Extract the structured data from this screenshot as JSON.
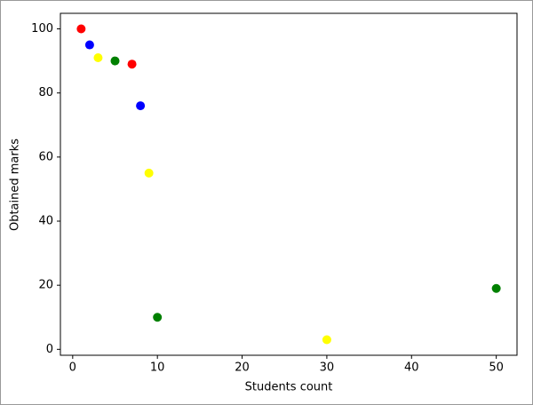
{
  "chart_data": {
    "type": "scatter",
    "x_label": "Students count",
    "y_label": "Obtained marks",
    "x": [
      1,
      2,
      3,
      5,
      7,
      8,
      9,
      10,
      30,
      50
    ],
    "values": [
      100,
      95,
      91,
      90,
      89,
      76,
      55,
      10,
      3,
      19
    ],
    "colors": [
      "red",
      "blue",
      "yellow",
      "green",
      "red",
      "blue",
      "yellow",
      "green",
      "yellow",
      "green"
    ],
    "xlim": [
      -1.45,
      52.45
    ],
    "ylim": [
      -1.85,
      104.85
    ],
    "xticks": [
      0,
      10,
      20,
      30,
      40,
      50
    ],
    "yticks": [
      0,
      20,
      40,
      60,
      80,
      100
    ],
    "grid": false
  }
}
